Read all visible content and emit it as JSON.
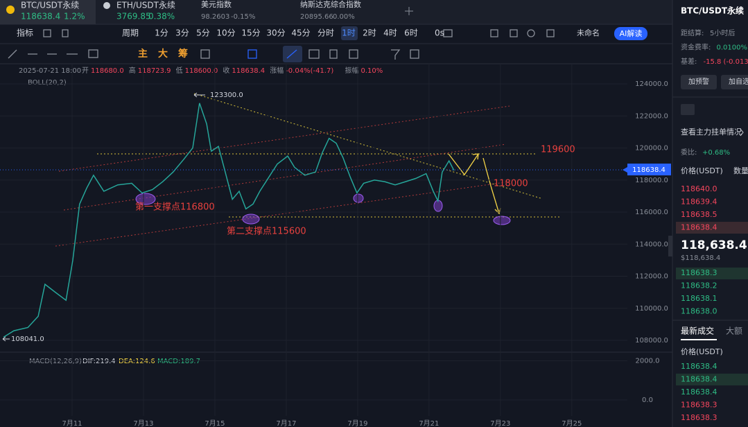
{
  "tabs": [
    {
      "name": "BTC/USDT永续",
      "price": "118638.4",
      "change": "1.2%"
    },
    {
      "name": "ETH/USDT永续",
      "price": "3769.85",
      "change": "0.38%"
    },
    {
      "name": "美元指数",
      "price": "98.2603",
      "change": "-0.15%"
    },
    {
      "name": "纳斯达克综合指数",
      "price": "20895.66",
      "change": "0.00%"
    }
  ],
  "toolbar": {
    "indicator": "指标",
    "period": "周期",
    "intervals": [
      {
        "label": "1分"
      },
      {
        "label": "3分"
      },
      {
        "label": "5分"
      },
      {
        "label": "10分"
      },
      {
        "label": "15分"
      },
      {
        "label": "30分"
      },
      {
        "label": "45分"
      },
      {
        "label": "分时"
      },
      {
        "label": "1时",
        "active": true
      },
      {
        "label": "2时"
      },
      {
        "label": "4时"
      },
      {
        "label": "6时"
      }
    ],
    "countdown": "0s",
    "layout_name": "未命名",
    "ai_button": "AI解读"
  },
  "drawing_tools": [
    "主",
    "大",
    "筹"
  ],
  "ohlc_info": {
    "time": "2025-07-21 18:00",
    "items": [
      {
        "label": "开",
        "value": "118680.0"
      },
      {
        "label": "高",
        "value": "118723.9"
      },
      {
        "label": "低",
        "value": "118600.0"
      },
      {
        "label": "收",
        "value": "118638.4"
      },
      {
        "label": "涨幅",
        "value": "-0.04%(-41.7)"
      },
      {
        "label": "振幅",
        "value": "0.10%"
      }
    ],
    "boll": "BOLL(20,2)"
  },
  "chart_data": {
    "type": "line",
    "color": "#26a69a",
    "x": [
      9.08,
      9.37,
      9.76,
      10.05,
      10.24,
      10.53,
      10.83,
      11.02,
      11.21,
      11.41,
      11.6,
      11.89,
      12.28,
      12.67,
      12.96,
      13.25,
      13.54,
      13.83,
      14.13,
      14.38,
      14.57,
      14.77,
      14.9,
      15.1,
      15.29,
      15.49,
      15.68,
      15.87,
      16.07,
      16.26,
      16.46,
      16.75,
      17.04,
      17.23,
      17.52,
      17.82,
      18.01,
      18.2,
      18.4,
      18.59,
      18.79,
      18.98,
      19.17,
      19.47,
      19.76,
      20.05,
      20.34,
      20.63,
      20.92,
      21.12,
      21.25,
      21.37,
      21.56,
      21.7
    ],
    "values": [
      108200,
      108600,
      108800,
      109500,
      111500,
      111000,
      110500,
      113000,
      116500,
      117500,
      118300,
      117300,
      117700,
      117800,
      117200,
      117400,
      117900,
      118500,
      119300,
      120000,
      122800,
      121500,
      119800,
      120100,
      118500,
      116800,
      117300,
      116200,
      116500,
      117300,
      118000,
      119000,
      119500,
      118800,
      118300,
      118500,
      119700,
      120600,
      120300,
      119400,
      118200,
      117200,
      117800,
      118000,
      117900,
      117700,
      117900,
      118100,
      118400,
      117300,
      116700,
      118500,
      119200,
      118600
    ],
    "xlim": [
      8.98,
      27.82
    ],
    "ylim": [
      107395,
      125254
    ],
    "yticks": [
      {
        "value": 124000,
        "label": "124000.0"
      },
      {
        "value": 122000,
        "label": "122000.0"
      },
      {
        "value": 120000,
        "label": "120000.0"
      },
      {
        "value": 118000,
        "label": "118000.0"
      },
      {
        "value": 116000,
        "label": "116000.0"
      },
      {
        "value": 114000,
        "label": "114000.0"
      },
      {
        "value": 112000,
        "label": "112000.0"
      },
      {
        "value": 110000,
        "label": "110000.0"
      },
      {
        "value": 108000,
        "label": "108000.0"
      }
    ],
    "xticks": [
      {
        "value": 11,
        "label": "7月11"
      },
      {
        "value": 13,
        "label": "7月13"
      },
      {
        "value": 15,
        "label": "7月15"
      },
      {
        "value": 17,
        "label": "7月17"
      },
      {
        "value": 19,
        "label": "7月19"
      },
      {
        "value": 21,
        "label": "7月21"
      },
      {
        "value": 23,
        "label": "7月23"
      },
      {
        "value": 25,
        "label": "7月25"
      }
    ],
    "current_price": 118638.4,
    "annotations": [
      "123300.0",
      "108041.0",
      "119600",
      "118000",
      "第一支撑点116800",
      "第二支撑点115600"
    ],
    "macd": {
      "title": "MACD(12,26,9)",
      "dif": "DIF:219.4",
      "dea": "DEA:124.6",
      "macd": "MACD:189.7",
      "ylim": [
        -815,
        2444
      ],
      "yticks": [
        {
          "value": 2000,
          "label": "2000.0"
        },
        {
          "value": 0,
          "label": "0.0"
        }
      ]
    }
  },
  "right_panel": {
    "title": "BTC/USDT永续",
    "stats": [
      {
        "label": "距结算:",
        "value": "5小时后"
      },
      {
        "label": "资金费率:",
        "value": "0.0100%"
      },
      {
        "label": "基差:",
        "value": "-15.8 (-0.013"
      }
    ],
    "buttons": [
      "加预警",
      "加自选"
    ],
    "orderbook_link": "查看主力挂单情况",
    "ratio_label": "委比:",
    "ratio_value": "+0.68%",
    "price_header": "价格(USDT)",
    "qty_header": "数量",
    "asks": [
      "118640.0",
      "118639.4",
      "118638.5",
      "118638.4"
    ],
    "last_price": "118,638.4",
    "last_price_usd": "$118,638.4",
    "bids": [
      "118638.3",
      "118638.2",
      "118638.1",
      "118638.0"
    ],
    "trades_tab": "最新成交",
    "large_tab": "大额",
    "trades_header": "价格(USDT)",
    "trades": [
      {
        "price": "118638.4",
        "side": "buy"
      },
      {
        "price": "118638.4",
        "side": "buy"
      },
      {
        "price": "118638.4",
        "side": "buy"
      },
      {
        "price": "118638.3",
        "side": "sell"
      },
      {
        "price": "118638.3",
        "side": "sell"
      }
    ]
  }
}
